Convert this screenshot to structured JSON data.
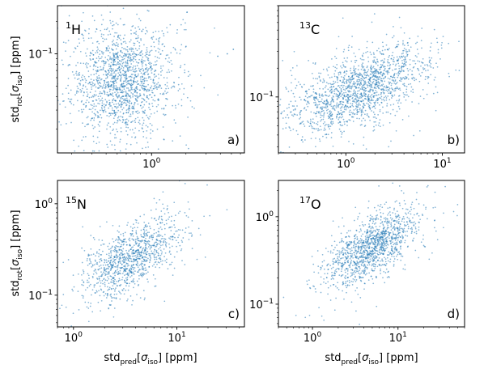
{
  "chart_data": [
    {
      "type": "scatter",
      "panel_tag": "a)",
      "nucleus": {
        "mass": "1",
        "symbol": "H"
      },
      "x_scale": "log",
      "y_scale": "log",
      "xlim": [
        0.15,
        6.5
      ],
      "ylim": [
        0.012,
        0.28
      ],
      "x_ticks": [
        {
          "value": 1,
          "mant": "10",
          "exp": "0"
        }
      ],
      "y_ticks": [
        {
          "value": 0.1,
          "mant": "10",
          "exp": "−1"
        }
      ],
      "xlabel": "",
      "ylabel": {
        "main": "std",
        "sub": "rot",
        "bracket_open": "[",
        "sigma": "σ",
        "sigma_sub": "iso",
        "bracket_close": "]",
        "unit": " [ppm]"
      },
      "color": "#1f77b4",
      "cloud": {
        "x_center": 0.55,
        "y_center": 0.055,
        "x_spread": 0.22,
        "y_spread": 0.26,
        "correlation": 0.05,
        "n": 1600
      },
      "outliers": [
        {
          "x": 3.8,
          "y": 0.095
        },
        {
          "x": 5.2,
          "y": 0.11
        },
        {
          "x": 4.6,
          "y": 0.1
        }
      ]
    },
    {
      "type": "scatter",
      "panel_tag": "b)",
      "nucleus": {
        "mass": "13",
        "symbol": "C"
      },
      "x_scale": "log",
      "y_scale": "log",
      "xlim": [
        0.2,
        17
      ],
      "ylim": [
        0.026,
        0.9
      ],
      "x_ticks": [
        {
          "value": 1,
          "mant": "10",
          "exp": "0"
        },
        {
          "value": 10,
          "mant": "10",
          "exp": "1"
        }
      ],
      "y_ticks": [
        {
          "value": 0.1,
          "mant": "10",
          "exp": "−1"
        }
      ],
      "xlabel": "",
      "ylabel": "",
      "color": "#1f77b4",
      "cloud": {
        "x_center": 1.4,
        "y_center": 0.12,
        "x_spread": 0.34,
        "y_spread": 0.22,
        "correlation": 0.55,
        "n": 1600
      },
      "outliers": []
    },
    {
      "type": "scatter",
      "panel_tag": "c)",
      "nucleus": {
        "mass": "15",
        "symbol": "N"
      },
      "x_scale": "log",
      "y_scale": "log",
      "xlim": [
        0.7,
        45
      ],
      "ylim": [
        0.045,
        1.8
      ],
      "x_ticks": [
        {
          "value": 1,
          "mant": "10",
          "exp": "0"
        },
        {
          "value": 10,
          "mant": "10",
          "exp": "1"
        }
      ],
      "y_ticks": [
        {
          "value": 0.1,
          "mant": "10",
          "exp": "−1"
        },
        {
          "value": 1,
          "mant": "10",
          "exp": "0"
        }
      ],
      "xlabel": {
        "main": "std",
        "sub": "pred",
        "bracket_open": "[",
        "sigma": "σ",
        "sigma_sub": "iso",
        "bracket_close": "]",
        "unit": " [ppm]"
      },
      "ylabel": {
        "main": "std",
        "sub": "rot",
        "bracket_open": "[",
        "sigma": "σ",
        "sigma_sub": "iso",
        "bracket_close": "]",
        "unit": " [ppm]"
      },
      "color": "#1f77b4",
      "cloud": {
        "x_center": 3.5,
        "y_center": 0.25,
        "x_spread": 0.23,
        "y_spread": 0.21,
        "correlation": 0.6,
        "n": 1100
      },
      "outliers": []
    },
    {
      "type": "scatter",
      "panel_tag": "d)",
      "nucleus": {
        "mass": "17",
        "symbol": "O"
      },
      "x_scale": "log",
      "y_scale": "log",
      "xlim": [
        0.4,
        60
      ],
      "ylim": [
        0.055,
        2.6
      ],
      "x_ticks": [
        {
          "value": 1,
          "mant": "10",
          "exp": "0"
        },
        {
          "value": 10,
          "mant": "10",
          "exp": "1"
        }
      ],
      "y_ticks": [
        {
          "value": 0.1,
          "mant": "10",
          "exp": "−1"
        },
        {
          "value": 1,
          "mant": "10",
          "exp": "0"
        }
      ],
      "xlabel": {
        "main": "std",
        "sub": "pred",
        "bracket_open": "[",
        "sigma": "σ",
        "sigma_sub": "iso",
        "bracket_close": "]",
        "unit": " [ppm]"
      },
      "ylabel": "",
      "color": "#1f77b4",
      "cloud": {
        "x_center": 5.0,
        "y_center": 0.45,
        "x_spread": 0.26,
        "y_spread": 0.22,
        "correlation": 0.65,
        "n": 1300
      },
      "outliers": []
    }
  ]
}
